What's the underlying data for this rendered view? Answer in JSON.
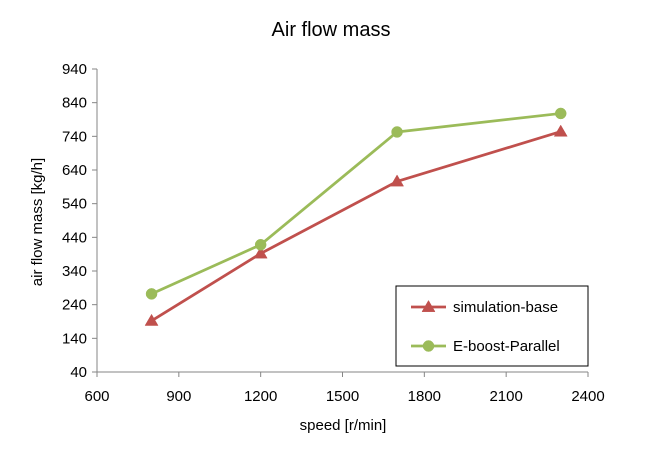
{
  "chart_data": {
    "type": "line",
    "title": "Air flow mass",
    "xlabel": "speed [r/min]",
    "ylabel": "air flow mass [kg/h]",
    "xlim": [
      600,
      2400
    ],
    "ylim": [
      40,
      940
    ],
    "xticks": [
      600,
      900,
      1200,
      1500,
      1800,
      2100,
      2400
    ],
    "yticks": [
      40,
      140,
      240,
      340,
      440,
      540,
      640,
      740,
      840,
      940
    ],
    "grid": false,
    "legend_position": "bottom-right",
    "series": [
      {
        "name": "simulation-base",
        "color": "#c0504d",
        "marker": "triangle",
        "x": [
          800,
          1200,
          1700,
          2300
        ],
        "y": [
          192,
          392,
          606,
          754
        ]
      },
      {
        "name": "E-boost-Parallel",
        "color": "#9bbb59",
        "marker": "circle",
        "x": [
          800,
          1200,
          1700,
          2300
        ],
        "y": [
          272,
          418,
          753,
          808
        ]
      }
    ]
  }
}
